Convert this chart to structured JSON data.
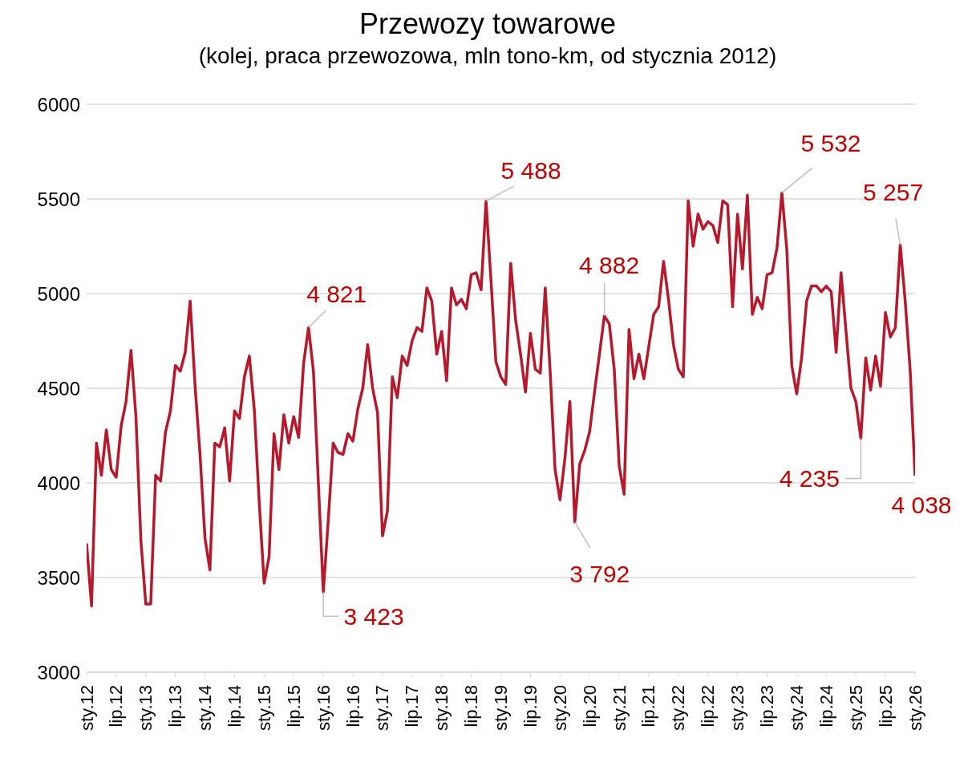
{
  "chart_data": {
    "type": "line",
    "title": "Przewozy towarowe",
    "subtitle": "(kolej, praca przewozowa, mln tono-km, od stycznia 2012)",
    "x": [
      "2012-01",
      "2012-02",
      "2012-03",
      "2012-04",
      "2012-05",
      "2012-06",
      "2012-07",
      "2012-08",
      "2012-09",
      "2012-10",
      "2012-11",
      "2012-12",
      "2013-01",
      "2013-02",
      "2013-03",
      "2013-04",
      "2013-05",
      "2013-06",
      "2013-07",
      "2013-08",
      "2013-09",
      "2013-10",
      "2013-11",
      "2013-12",
      "2014-01",
      "2014-02",
      "2014-03",
      "2014-04",
      "2014-05",
      "2014-06",
      "2014-07",
      "2014-08",
      "2014-09",
      "2014-10",
      "2014-11",
      "2014-12",
      "2015-01",
      "2015-02",
      "2015-03",
      "2015-04",
      "2015-05",
      "2015-06",
      "2015-07",
      "2015-08",
      "2015-09",
      "2015-10",
      "2015-11",
      "2015-12",
      "2016-01",
      "2016-02",
      "2016-03",
      "2016-04",
      "2016-05",
      "2016-06",
      "2016-07",
      "2016-08",
      "2016-09",
      "2016-10",
      "2016-11",
      "2016-12",
      "2017-01",
      "2017-02",
      "2017-03",
      "2017-04",
      "2017-05",
      "2017-06",
      "2017-07",
      "2017-08",
      "2017-09",
      "2017-10",
      "2017-11",
      "2017-12",
      "2018-01",
      "2018-02",
      "2018-03",
      "2018-04",
      "2018-05",
      "2018-06",
      "2018-07",
      "2018-08",
      "2018-09",
      "2018-10",
      "2018-11",
      "2018-12",
      "2019-01",
      "2019-02",
      "2019-03",
      "2019-04",
      "2019-05",
      "2019-06",
      "2019-07",
      "2019-08",
      "2019-09",
      "2019-10",
      "2019-11",
      "2019-12",
      "2020-01",
      "2020-02",
      "2020-03",
      "2020-04",
      "2020-05",
      "2020-06",
      "2020-07",
      "2020-08",
      "2020-09",
      "2020-10",
      "2020-11",
      "2020-12",
      "2021-01",
      "2021-02",
      "2021-03",
      "2021-04",
      "2021-05",
      "2021-06",
      "2021-07",
      "2021-08",
      "2021-09",
      "2021-10",
      "2021-11",
      "2021-12",
      "2022-01",
      "2022-02",
      "2022-03",
      "2022-04",
      "2022-05",
      "2022-06",
      "2022-07",
      "2022-08",
      "2022-09",
      "2022-10",
      "2022-11",
      "2022-12",
      "2023-01",
      "2023-02",
      "2023-03",
      "2023-04",
      "2023-05",
      "2023-06",
      "2023-07",
      "2023-08",
      "2023-09",
      "2023-10",
      "2023-11",
      "2023-12",
      "2024-01",
      "2024-02",
      "2024-03",
      "2024-04",
      "2024-05",
      "2024-06",
      "2024-07",
      "2024-08",
      "2024-09",
      "2024-10",
      "2024-11",
      "2024-12",
      "2025-01",
      "2025-02",
      "2025-03",
      "2025-04",
      "2025-05",
      "2025-06",
      "2025-07",
      "2025-08",
      "2025-09",
      "2025-10",
      "2025-11",
      "2025-12",
      "2026-01"
    ],
    "series": [
      {
        "color": "#b5192b",
        "values": [
          3680,
          3350,
          4210,
          4040,
          4280,
          4070,
          4030,
          4300,
          4430,
          4700,
          4350,
          3700,
          3360,
          3360,
          4040,
          4010,
          4270,
          4380,
          4620,
          4590,
          4690,
          4960,
          4510,
          4150,
          3710,
          3540,
          4210,
          4190,
          4290,
          4010,
          4380,
          4340,
          4560,
          4670,
          4390,
          3900,
          3470,
          3610,
          4260,
          4070,
          4360,
          4210,
          4350,
          4240,
          4630,
          4821,
          4590,
          4000,
          3423,
          3800,
          4210,
          4160,
          4150,
          4260,
          4220,
          4390,
          4500,
          4730,
          4500,
          4370,
          3720,
          3850,
          4560,
          4450,
          4670,
          4620,
          4750,
          4820,
          4800,
          5030,
          4960,
          4680,
          4800,
          4540,
          5030,
          4940,
          4970,
          4920,
          5100,
          5110,
          5020,
          5488,
          5070,
          4640,
          4560,
          4520,
          5160,
          4860,
          4680,
          4480,
          4790,
          4600,
          4580,
          5030,
          4590,
          4070,
          3910,
          4130,
          4430,
          3792,
          4100,
          4170,
          4270,
          4480,
          4680,
          4882,
          4840,
          4600,
          4090,
          3940,
          4810,
          4550,
          4680,
          4550,
          4720,
          4890,
          4930,
          5170,
          4970,
          4730,
          4600,
          4560,
          5490,
          5250,
          5420,
          5340,
          5380,
          5360,
          5270,
          5490,
          5470,
          4930,
          5420,
          5130,
          5520,
          4890,
          4980,
          4920,
          5100,
          5110,
          5240,
          5532,
          5230,
          4620,
          4470,
          4660,
          4960,
          5040,
          5040,
          5010,
          5040,
          5010,
          4690,
          5110,
          4800,
          4500,
          4430,
          4235,
          4660,
          4490,
          4670,
          4510,
          4900,
          4770,
          4820,
          5257,
          4960,
          4600,
          4038
        ]
      }
    ],
    "xlim": [
      "2012-01",
      "2026-01"
    ],
    "xticks": [
      {
        "value": "2012-01",
        "label": "sty.12"
      },
      {
        "value": "2012-07",
        "label": "lip.12"
      },
      {
        "value": "2013-01",
        "label": "sty.13"
      },
      {
        "value": "2013-07",
        "label": "lip.13"
      },
      {
        "value": "2014-01",
        "label": "sty.14"
      },
      {
        "value": "2014-07",
        "label": "lip.14"
      },
      {
        "value": "2015-01",
        "label": "sty.15"
      },
      {
        "value": "2015-07",
        "label": "lip.15"
      },
      {
        "value": "2016-01",
        "label": "sty.16"
      },
      {
        "value": "2016-07",
        "label": "lip.16"
      },
      {
        "value": "2017-01",
        "label": "sty.17"
      },
      {
        "value": "2017-07",
        "label": "lip.17"
      },
      {
        "value": "2018-01",
        "label": "sty.18"
      },
      {
        "value": "2018-07",
        "label": "lip.18"
      },
      {
        "value": "2019-01",
        "label": "sty.19"
      },
      {
        "value": "2019-07",
        "label": "lip.19"
      },
      {
        "value": "2020-01",
        "label": "sty.20"
      },
      {
        "value": "2020-07",
        "label": "lip.20"
      },
      {
        "value": "2021-01",
        "label": "sty.21"
      },
      {
        "value": "2021-07",
        "label": "lip.21"
      },
      {
        "value": "2022-01",
        "label": "sty.22"
      },
      {
        "value": "2022-07",
        "label": "lip.22"
      },
      {
        "value": "2023-01",
        "label": "sty.23"
      },
      {
        "value": "2023-07",
        "label": "lip.23"
      },
      {
        "value": "2024-01",
        "label": "sty.24"
      },
      {
        "value": "2024-07",
        "label": "lip.24"
      },
      {
        "value": "2025-01",
        "label": "sty.25"
      },
      {
        "value": "2025-07",
        "label": "lip.25"
      },
      {
        "value": "2026-01",
        "label": "sty.26"
      }
    ],
    "ylim": [
      3000,
      6000
    ],
    "yticks": [
      3000,
      3500,
      4000,
      4500,
      5000,
      5500,
      6000
    ],
    "grid": "y",
    "line_style": "solid",
    "annotations": [
      {
        "text": "4 821",
        "x": "2015-10",
        "y": 4821
      },
      {
        "text": "3 423",
        "x": "2016-01",
        "y": 3423
      },
      {
        "text": "5 488",
        "x": "2018-10",
        "y": 5488
      },
      {
        "text": "3 792",
        "x": "2020-04",
        "y": 3792
      },
      {
        "text": "4 882",
        "x": "2020-10",
        "y": 4882
      },
      {
        "text": "5 532",
        "x": "2023-10",
        "y": 5532
      },
      {
        "text": "4 235",
        "x": "2025-02",
        "y": 4235
      },
      {
        "text": "5 257",
        "x": "2025-10",
        "y": 5257
      },
      {
        "text": "4 038",
        "x": "2026-01",
        "y": 4038
      }
    ]
  }
}
